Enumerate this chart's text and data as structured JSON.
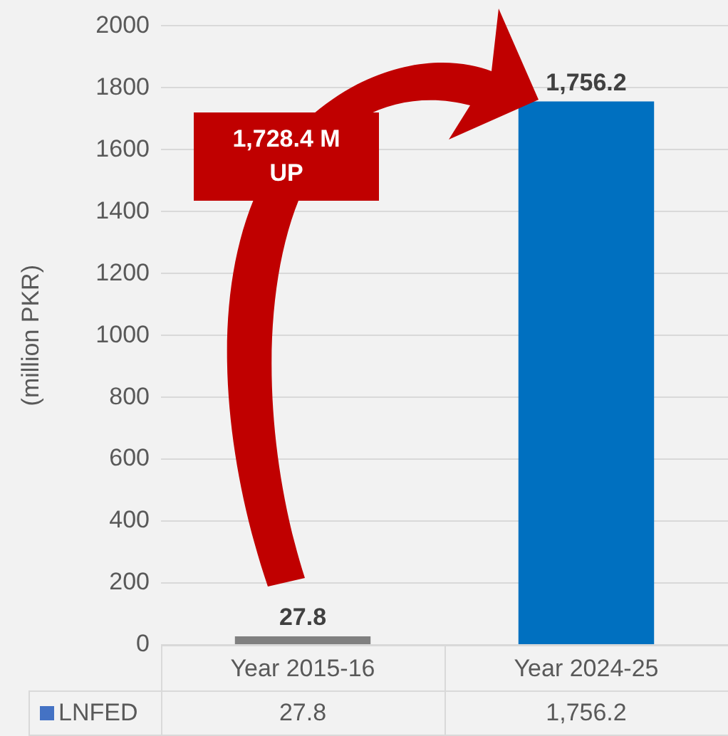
{
  "chart_data": {
    "type": "bar",
    "ylabel": "(million PKR)",
    "categories": [
      "Year 2015-16",
      "Year 2024-25"
    ],
    "series": [
      {
        "name": "LNFED",
        "color": "#4472c4",
        "colors": [
          "#808080",
          "#0070c0"
        ],
        "values": [
          27.8,
          1756.2
        ],
        "value_labels": [
          "27.8",
          "1,756.2"
        ]
      }
    ],
    "ylim": [
      0,
      2000
    ],
    "yticks": [
      0,
      200,
      400,
      600,
      800,
      1000,
      1200,
      1400,
      1600,
      1800,
      2000
    ],
    "grid": "y",
    "legend": "bottom",
    "data_labels": true,
    "annotations": [
      "1,728.4 M UP"
    ]
  }
}
